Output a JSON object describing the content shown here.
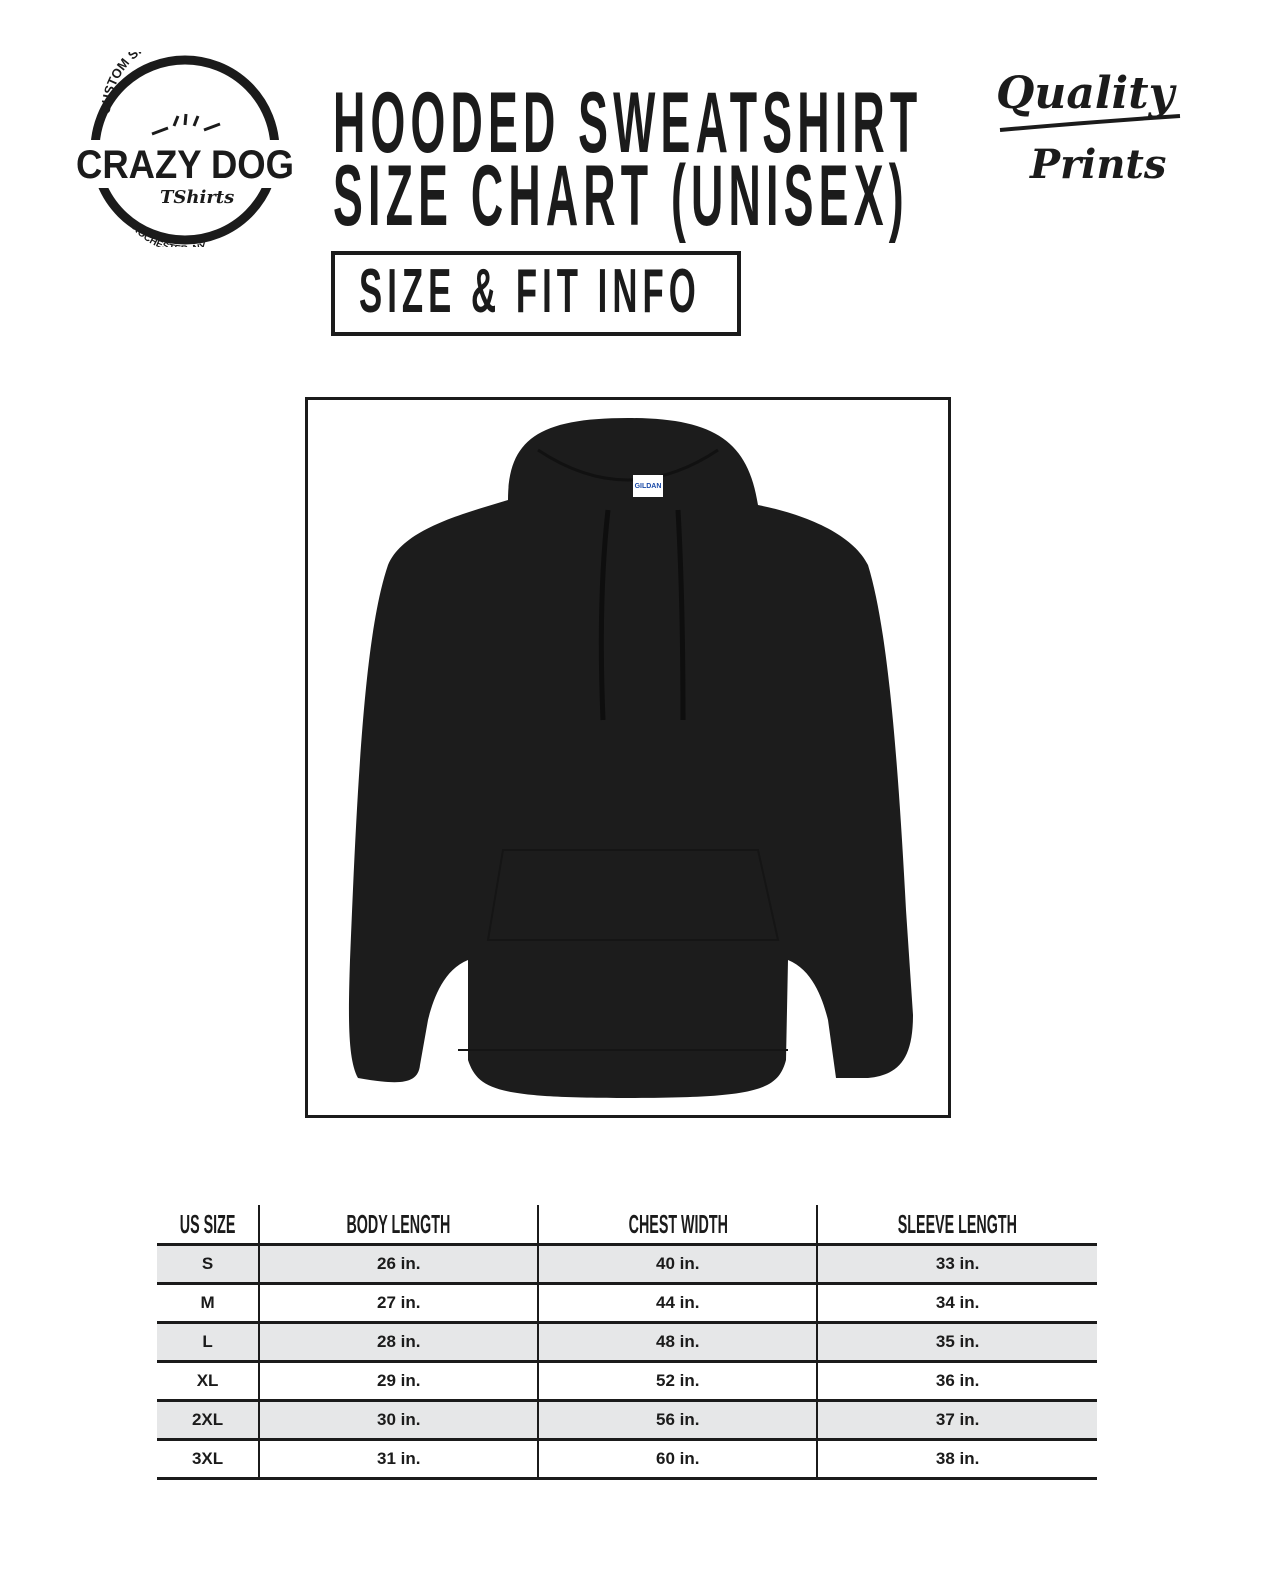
{
  "header": {
    "title_line1": "HOODED SWEATSHIRT",
    "title_line2": "SIZE CHART (UNISEX)",
    "subtitle_box": "SIZE & FIT INFO"
  },
  "logos": {
    "left": {
      "top_arc": "CUSTOM SHIRTS & MORE",
      "main": "CRAZY DOG",
      "script": "TShirts",
      "bottom_arc": "ROCHESTER, NY"
    },
    "right": {
      "line1": "Quality",
      "line2": "Prints"
    }
  },
  "product_image": {
    "label": "GILDAN",
    "color": "#1c1c1c"
  },
  "size_table": {
    "headers": [
      "US SIZE",
      "BODY LENGTH",
      "CHEST WIDTH",
      "SLEEVE LENGTH"
    ],
    "rows": [
      [
        "S",
        "26 in.",
        "40 in.",
        "33 in."
      ],
      [
        "M",
        "27 in.",
        "44 in.",
        "34 in."
      ],
      [
        "L",
        "28 in.",
        "48 in.",
        "35 in."
      ],
      [
        "XL",
        "29 in.",
        "52 in.",
        "36 in."
      ],
      [
        "2XL",
        "30 in.",
        "56 in.",
        "37 in."
      ],
      [
        "3XL",
        "31 in.",
        "60 in.",
        "38 in."
      ]
    ],
    "shade_color": "#e6e7e8"
  }
}
